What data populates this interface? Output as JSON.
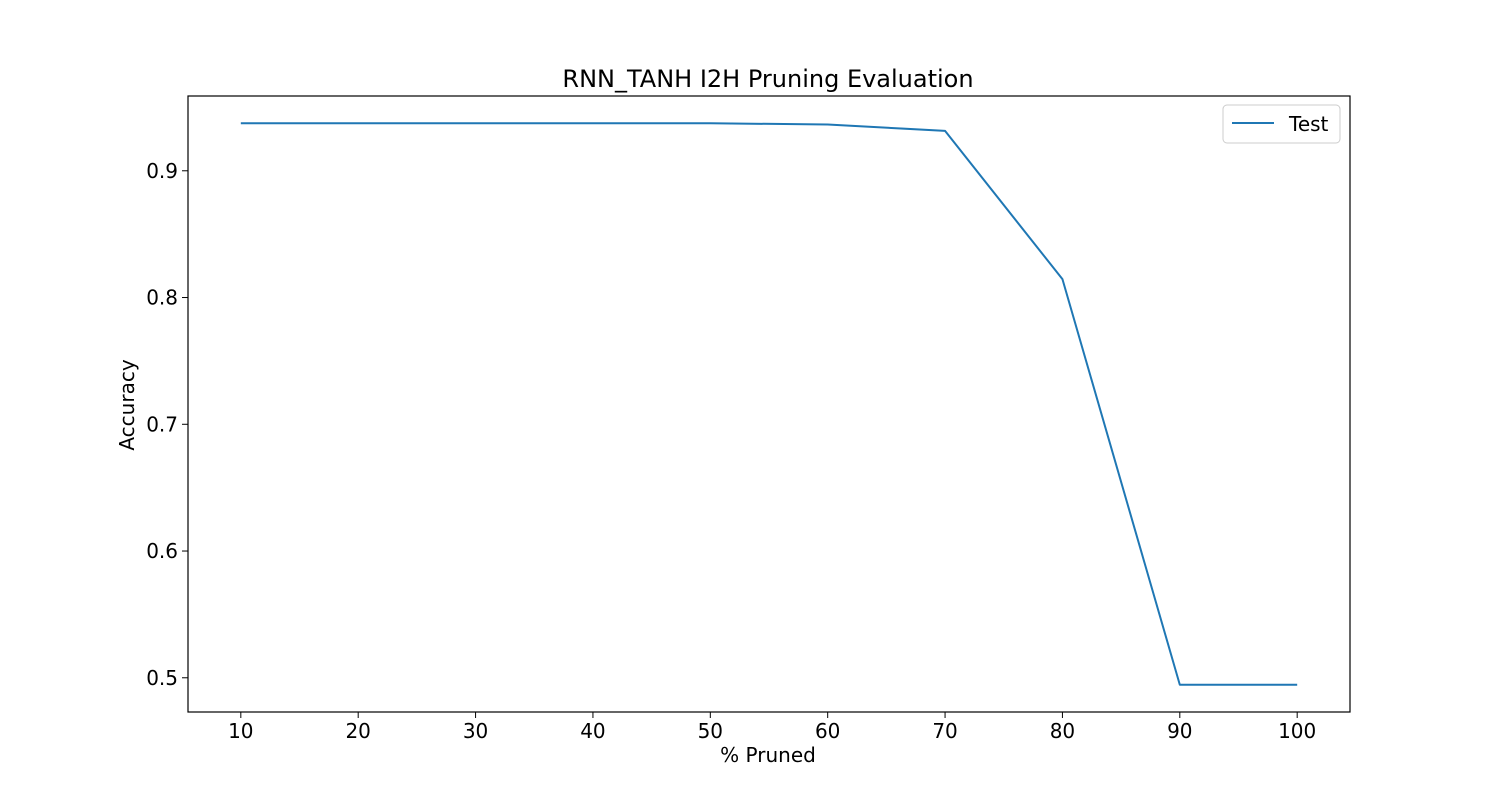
{
  "chart_data": {
    "type": "line",
    "title": "RNN_TANH I2H Pruning Evaluation",
    "xlabel": "% Pruned",
    "ylabel": "Accuracy",
    "x": [
      10,
      20,
      30,
      40,
      50,
      60,
      70,
      80,
      90,
      100
    ],
    "series": [
      {
        "name": "Test",
        "color": "#1f77b4",
        "values": [
          0.9375,
          0.9375,
          0.9375,
          0.9375,
          0.9375,
          0.9365,
          0.9315,
          0.8145,
          0.4945,
          0.4945
        ]
      }
    ],
    "xlim": [
      5.5,
      104.5
    ],
    "ylim": [
      0.473,
      0.959
    ],
    "xticks": [
      10,
      20,
      30,
      40,
      50,
      60,
      70,
      80,
      90,
      100
    ],
    "xtick_labels": [
      "10",
      "20",
      "30",
      "40",
      "50",
      "60",
      "70",
      "80",
      "90",
      "100"
    ],
    "yticks": [
      0.5,
      0.6,
      0.7,
      0.8,
      0.9
    ],
    "ytick_labels": [
      "0.5",
      "0.6",
      "0.7",
      "0.8",
      "0.9"
    ],
    "grid": false,
    "legend_position": "top-right"
  }
}
